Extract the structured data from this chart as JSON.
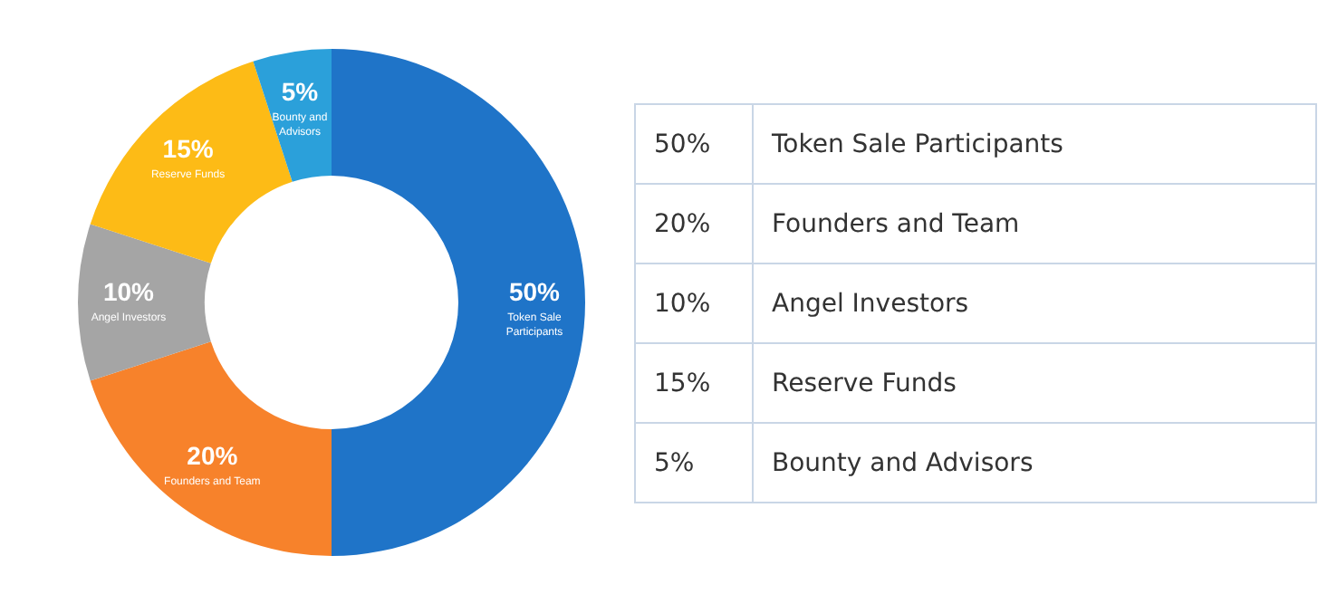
{
  "chart_data": {
    "type": "donut",
    "categories": [
      "Token Sale Participants",
      "Founders and Team",
      "Angel Investors",
      "Reserve Funds",
      "Bounty and Advisors"
    ],
    "values": [
      50,
      20,
      10,
      15,
      5
    ],
    "value_labels": [
      "50%",
      "20%",
      "10%",
      "15%",
      "5%"
    ],
    "colors": [
      "#1f74c8",
      "#f7822b",
      "#a5a5a5",
      "#fdbb16",
      "#2ba0da"
    ]
  }
}
